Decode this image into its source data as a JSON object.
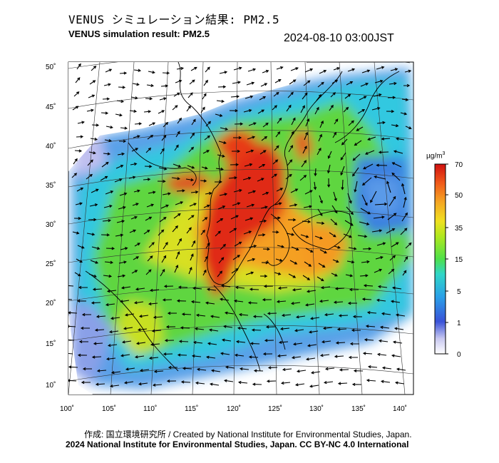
{
  "header": {
    "title_jp": "VENUS シミュレーション結果: PM2.5",
    "title_en": "VENUS simulation result: PM2.5",
    "timestamp": "2024-08-10 03:00JST"
  },
  "map": {
    "lat_labels": [
      "50˚",
      "45˚",
      "40˚",
      "35˚",
      "30˚",
      "25˚",
      "20˚",
      "15˚",
      "10˚"
    ],
    "lon_labels": [
      "100˚",
      "105˚",
      "110˚",
      "115˚",
      "120˚",
      "125˚",
      "130˚",
      "135˚",
      "140˚"
    ]
  },
  "colorbar": {
    "unit": "µg/m",
    "unit_sup": "3",
    "labels": [
      "70",
      "50",
      "35",
      "15",
      "5",
      "1",
      "0"
    ]
  },
  "footer": {
    "created_by": "作成: 国立環境研究所 / Created by National Institute for Environmental Studies, Japan.",
    "copyright": "2024 National Institute for Environmental Studies, Japan. CC BY-NC 4.0 International"
  },
  "colors": {
    "very_high": "#e8261a",
    "high": "#f5a623",
    "medium": "#7ed321",
    "low": "#3fb8e6",
    "very_low": "#3a6fe0",
    "none": "#ffffff"
  }
}
